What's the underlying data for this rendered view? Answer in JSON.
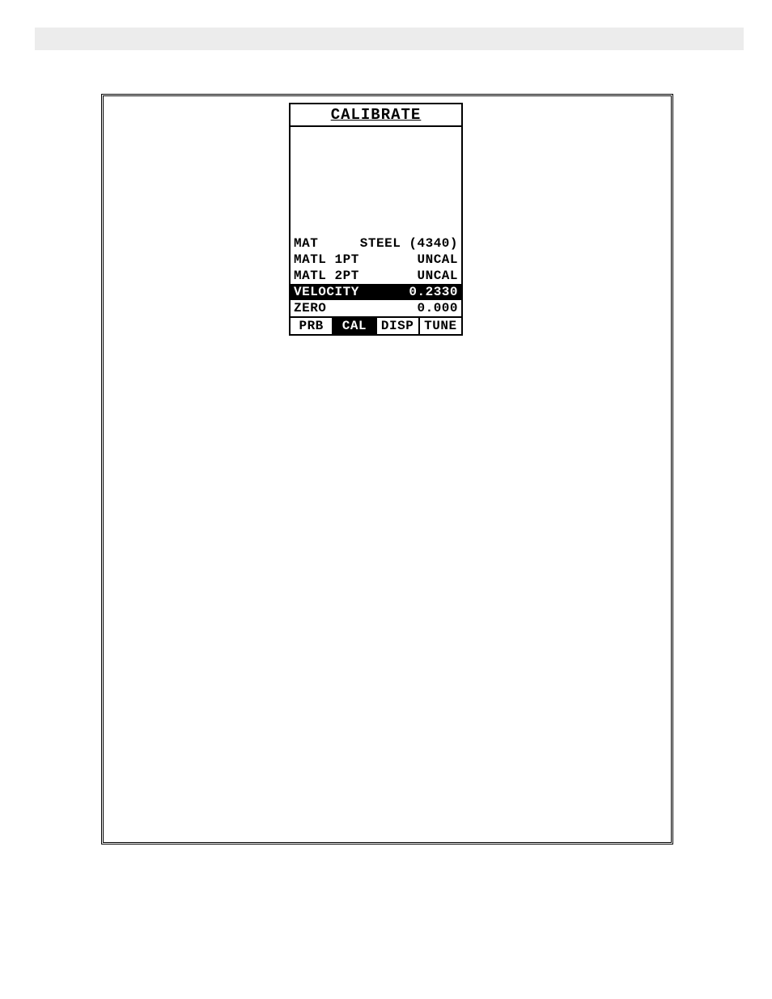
{
  "screen": {
    "title": "CALIBRATE",
    "rows": [
      {
        "label": "MAT",
        "value": "STEEL (4340)",
        "highlighted": false
      },
      {
        "label": "MATL 1PT",
        "value": "UNCAL",
        "highlighted": false
      },
      {
        "label": "MATL 2PT",
        "value": "UNCAL",
        "highlighted": false
      },
      {
        "label": "VELOCITY",
        "value": "0.2330",
        "highlighted": true
      },
      {
        "label": "ZERO",
        "value": "0.000",
        "highlighted": false
      }
    ],
    "tabs": [
      {
        "label": "PRB",
        "active": false
      },
      {
        "label": "CAL",
        "active": true
      },
      {
        "label": "DISP",
        "active": false
      },
      {
        "label": "TUNE",
        "active": false
      }
    ]
  },
  "colors": {
    "background": "#ffffff",
    "foreground": "#000000",
    "header_bar": "#ececec"
  }
}
